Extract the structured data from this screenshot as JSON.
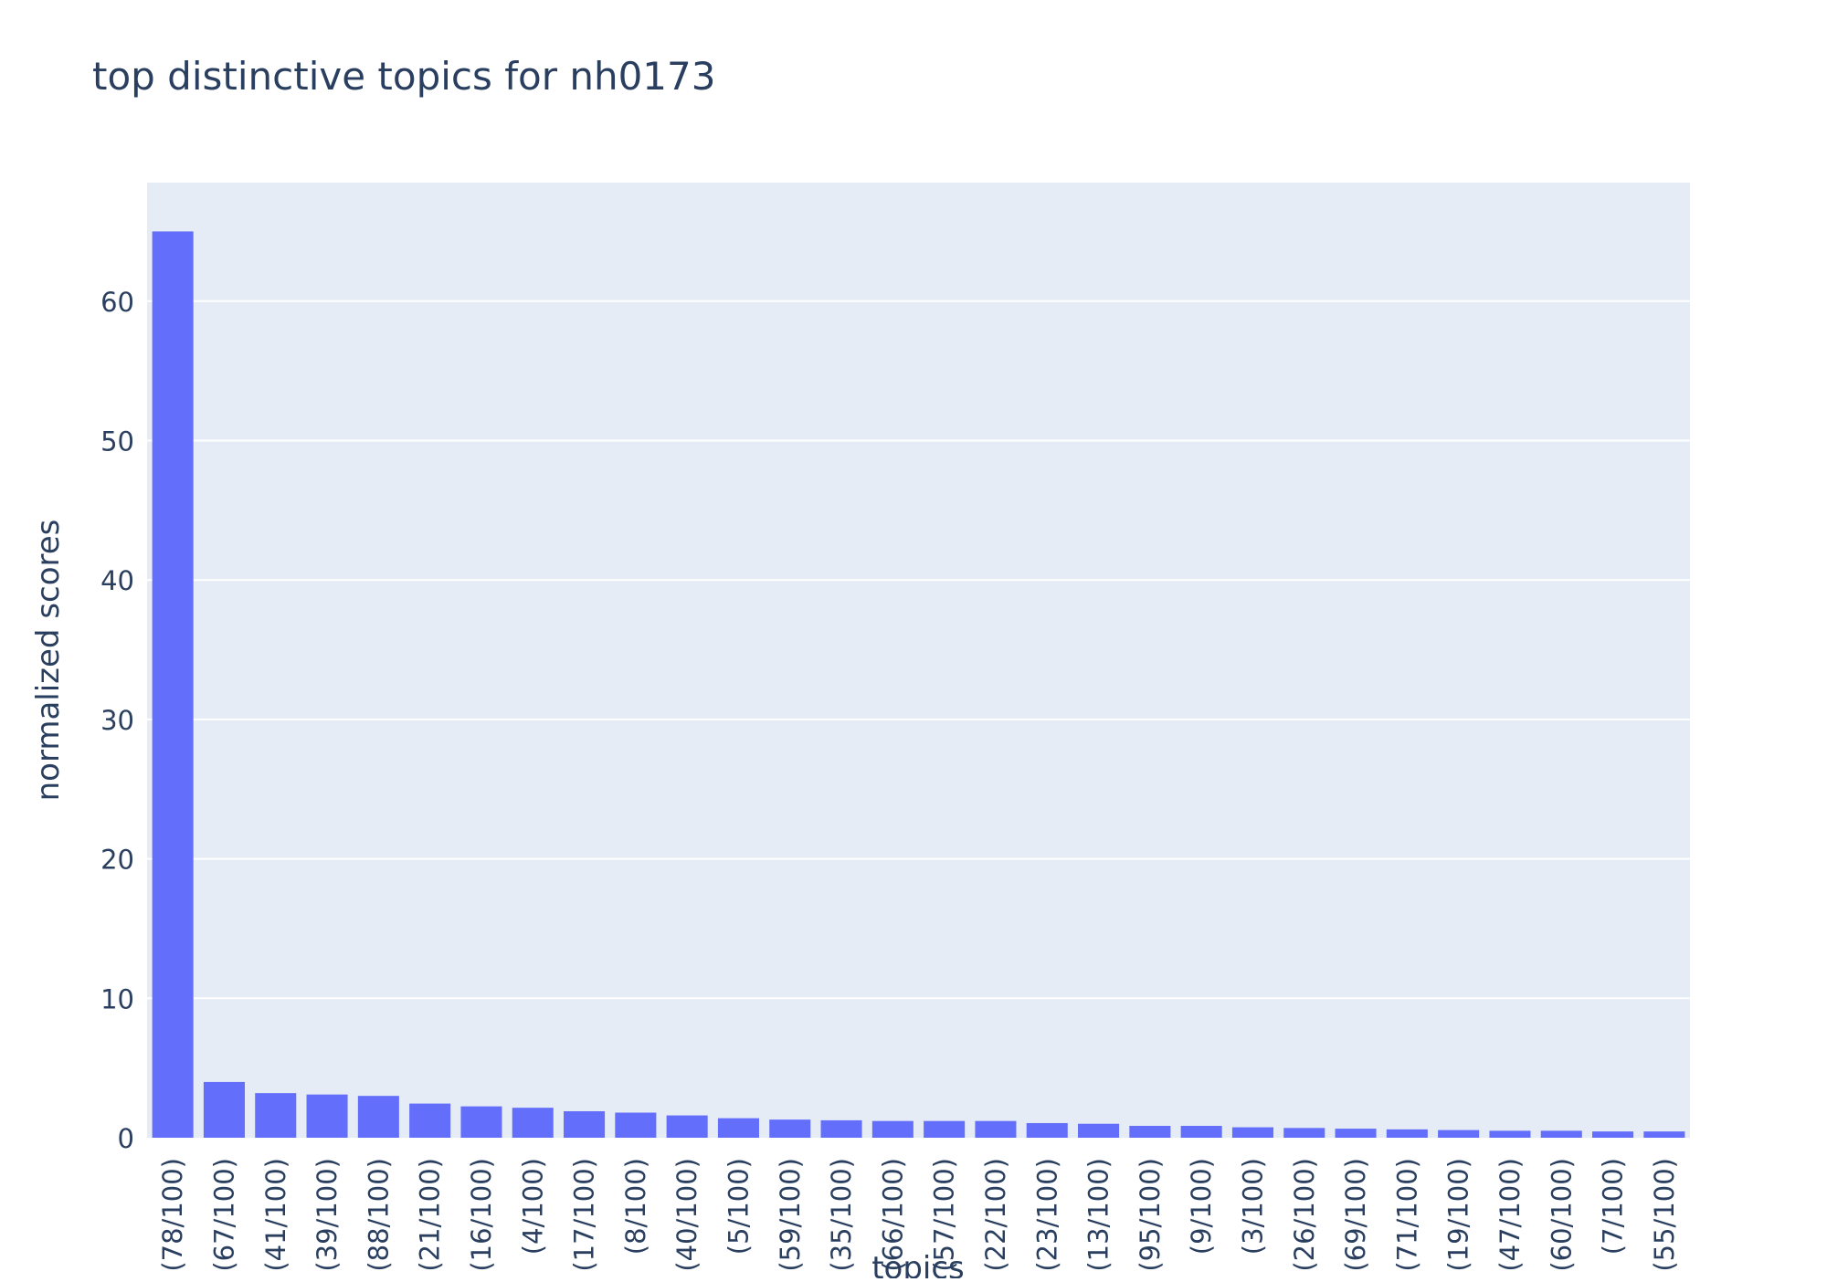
{
  "chart_data": {
    "type": "bar",
    "title": "top distinctive topics for nh0173",
    "xlabel": "topics",
    "ylabel": "normalized scores",
    "ylim": [
      0,
      68.5
    ],
    "yticks": [
      0,
      10,
      20,
      30,
      40,
      50,
      60
    ],
    "grid": true,
    "categories": [
      "(78/100)",
      "(67/100)",
      "(41/100)",
      "(39/100)",
      "(88/100)",
      "(21/100)",
      "(16/100)",
      "(4/100)",
      "(17/100)",
      "(8/100)",
      "(40/100)",
      "(5/100)",
      "(59/100)",
      "(35/100)",
      "(66/100)",
      "(57/100)",
      "(22/100)",
      "(23/100)",
      "(13/100)",
      "(95/100)",
      "(9/100)",
      "(3/100)",
      "(26/100)",
      "(69/100)",
      "(71/100)",
      "(19/100)",
      "(47/100)",
      "(60/100)",
      "(7/100)",
      "(55/100)"
    ],
    "values": [
      65.0,
      4.0,
      3.2,
      3.1,
      3.0,
      2.45,
      2.25,
      2.15,
      1.9,
      1.8,
      1.6,
      1.4,
      1.3,
      1.25,
      1.2,
      1.2,
      1.2,
      1.05,
      1.0,
      0.85,
      0.85,
      0.75,
      0.7,
      0.65,
      0.6,
      0.55,
      0.5,
      0.5,
      0.45,
      0.45
    ],
    "colors": {
      "bar": "#636efa",
      "plot_bg": "#e5ecf6",
      "grid": "#ffffff",
      "text": "#2a3f5f"
    }
  }
}
